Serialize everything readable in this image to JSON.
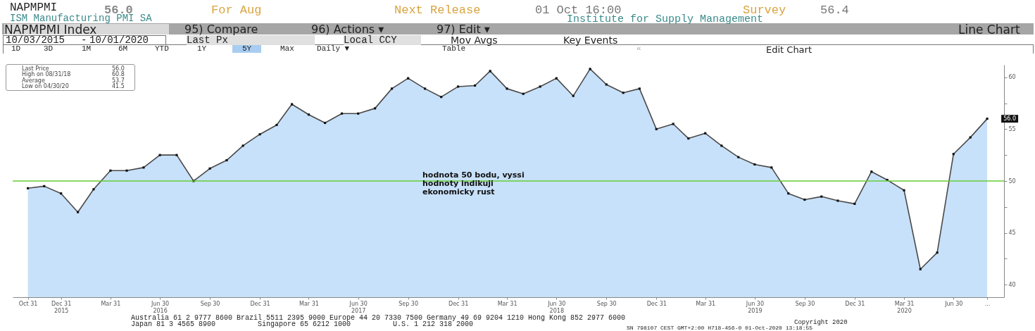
{
  "chart_data": {
    "type": "area",
    "title": "NAPMPMI",
    "subtitle": "ISM Manufacturing PMI SA",
    "x": [
      "2015-10-31",
      "2015-11-30",
      "2015-12-31",
      "2016-01-31",
      "2016-02-29",
      "2016-03-31",
      "2016-04-30",
      "2016-05-31",
      "2016-06-30",
      "2016-07-31",
      "2016-08-31",
      "2016-09-30",
      "2016-10-31",
      "2016-11-30",
      "2016-12-31",
      "2017-01-31",
      "2017-02-28",
      "2017-03-31",
      "2017-04-30",
      "2017-05-31",
      "2017-06-30",
      "2017-07-31",
      "2017-08-31",
      "2017-09-30",
      "2017-10-31",
      "2017-11-30",
      "2017-12-31",
      "2018-01-31",
      "2018-02-28",
      "2018-03-31",
      "2018-04-30",
      "2018-05-31",
      "2018-06-30",
      "2018-07-31",
      "2018-08-31",
      "2018-09-30",
      "2018-10-31",
      "2018-11-30",
      "2018-12-31",
      "2019-01-31",
      "2019-02-28",
      "2019-03-31",
      "2019-04-30",
      "2019-05-31",
      "2019-06-30",
      "2019-07-31",
      "2019-08-31",
      "2019-09-30",
      "2019-10-31",
      "2019-11-30",
      "2019-12-31",
      "2020-01-31",
      "2020-02-29",
      "2020-03-31",
      "2020-04-30",
      "2020-05-31",
      "2020-06-30",
      "2020-07-31",
      "2020-08-31"
    ],
    "series": [
      {
        "color": "#c8e1fa",
        "values": [
          49.3,
          49.5,
          48.8,
          47.0,
          49.2,
          51.0,
          51.0,
          51.3,
          52.5,
          52.5,
          50.0,
          51.2,
          52.0,
          53.4,
          54.5,
          55.4,
          57.4,
          56.4,
          55.6,
          56.5,
          56.5,
          57.0,
          58.9,
          59.9,
          58.9,
          58.1,
          59.1,
          59.2,
          60.6,
          58.9,
          58.4,
          59.1,
          59.9,
          58.2,
          60.8,
          59.3,
          58.5,
          58.9,
          55.0,
          55.5,
          54.1,
          54.6,
          53.4,
          52.3,
          51.6,
          51.3,
          48.8,
          48.2,
          48.5,
          48.1,
          47.8,
          50.9,
          50.1,
          49.1,
          41.5,
          43.1,
          52.6,
          54.2,
          56.0
        ]
      }
    ],
    "marker": "square",
    "xlim": [
      "2015-10-03",
      "2020-10-01"
    ],
    "xticks": [
      {
        "value": "2015-10-31",
        "label": "Oct 31"
      },
      {
        "value": "2015-12-31",
        "label": "Dec 31\n2015"
      },
      {
        "value": "2016-03-31",
        "label": "Mar 31"
      },
      {
        "value": "2016-06-30",
        "label": "Jun 30\n2016"
      },
      {
        "value": "2016-09-30",
        "label": "Sep 30"
      },
      {
        "value": "2016-12-31",
        "label": "Dec 31"
      },
      {
        "value": "2017-03-31",
        "label": "Mar 31"
      },
      {
        "value": "2017-06-30",
        "label": "Jun 30\n2017"
      },
      {
        "value": "2017-09-30",
        "label": "Sep 30"
      },
      {
        "value": "2017-12-31",
        "label": "Dec 31"
      },
      {
        "value": "2018-03-31",
        "label": "Mar 31"
      },
      {
        "value": "2018-06-30",
        "label": "Jun 30\n2018"
      },
      {
        "value": "2018-09-30",
        "label": "Sep 30"
      },
      {
        "value": "2018-12-31",
        "label": "Dec 31"
      },
      {
        "value": "2019-03-31",
        "label": "Mar 31"
      },
      {
        "value": "2019-06-30",
        "label": "Jun 30\n2019"
      },
      {
        "value": "2019-09-30",
        "label": "Sep 30"
      },
      {
        "value": "2019-12-31",
        "label": "Dec 31"
      },
      {
        "value": "2020-03-31",
        "label": "Mar 31\n2020"
      },
      {
        "value": "2020-06-30",
        "label": "Jun 30"
      },
      {
        "value": "2020-08-31",
        "label": "..."
      }
    ],
    "ylim": [
      38.8,
      61.2
    ],
    "yticks": [
      40,
      {
        "value": 42.5,
        "label": null
      },
      45,
      {
        "value": 47.5,
        "label": null
      },
      50,
      {
        "value": 52.5,
        "label": null
      },
      55,
      {
        "value": 57.5,
        "label": null
      },
      60
    ],
    "ref_lines": [
      {
        "axis": "y",
        "value": 50,
        "label": "hodnota 50 bodu, vyssi hodnoty indikuji ekonomicky rust",
        "color": "#66cc33"
      }
    ],
    "annotations": [
      "56.0",
      "For Aug",
      "Next Release",
      "01 Oct 16:00",
      "Survey",
      "56.4",
      "Institute for Supply Management",
      "NAPMPMI Index",
      "95) Compare",
      "96) Actions ▾",
      "97) Edit ▾",
      "Line Chart",
      "10/03/2015",
      "-",
      "10/01/2020",
      "Last Px",
      "Local CCY",
      "Mov Avgs",
      "Key Events",
      "1D",
      "3D",
      "1M",
      "6M",
      "YTD",
      "1Y",
      "5Y",
      "Max",
      "Daily ▼",
      "Table",
      "«",
      "Edit Chart",
      "Last Price",
      "56.0",
      "High on 08/31/18",
      "60.8",
      "Average",
      "53.7",
      "Low on 04/30/20",
      "41.5",
      {
        "text": "56.0",
        "x": "2020-08-31",
        "y": 56.0
      },
      "Australia 61 2 9777 8600 Brazil 5511 2395 9000 Europe 44 20 7330 7500 Germany 49 69 9204 1210 Hong Kong 852 2977 6000",
      "Japan 81 3 4565 8900          Singapore 65 6212 1000          U.S. 1 212 318 2000",
      "Copyright 2020",
      "SN 798107 CEST GMT+2:00 H718-456-0 01-Oct-2020 13:18:55"
    ]
  }
}
